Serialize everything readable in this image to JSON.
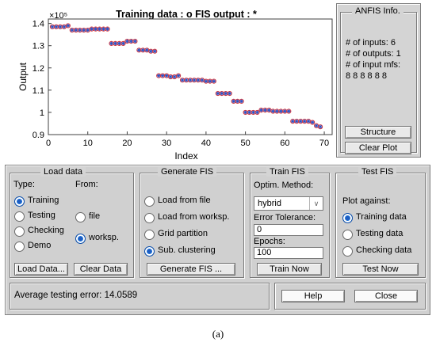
{
  "plot": {
    "title": "Training data : o    FIS output : *",
    "xlabel": "Index",
    "ylabel": "Output",
    "exponent": "×10⁵",
    "y_ticks": [
      "1.4",
      "1.3",
      "1.2",
      "1.1",
      "1",
      "0.9"
    ],
    "x_ticks": [
      "0",
      "10",
      "20",
      "30",
      "40",
      "50",
      "60",
      "70"
    ]
  },
  "chart_data": {
    "type": "scatter",
    "title": "Training data : o    FIS output : *",
    "xlabel": "Index",
    "ylabel": "Output",
    "xlim": [
      0,
      72
    ],
    "ylim": [
      0.9,
      1.42
    ],
    "y_scale_factor": "×10⁵",
    "series": [
      {
        "name": "Training data",
        "marker": "o",
        "color": "#e03030"
      },
      {
        "name": "FIS output",
        "marker": "*",
        "color": "#3050c0"
      }
    ],
    "x": [
      1,
      2,
      3,
      4,
      5,
      6,
      7,
      8,
      9,
      10,
      11,
      12,
      13,
      14,
      15,
      16,
      17,
      18,
      19,
      20,
      21,
      22,
      23,
      24,
      25,
      26,
      27,
      28,
      29,
      30,
      31,
      32,
      33,
      34,
      35,
      36,
      37,
      38,
      39,
      40,
      41,
      42,
      43,
      44,
      45,
      46,
      47,
      48,
      49,
      50,
      51,
      52,
      53,
      54,
      55,
      56,
      57,
      58,
      59,
      60,
      61,
      62,
      63,
      64,
      65,
      66,
      67,
      68,
      69
    ],
    "y": [
      1.385,
      1.385,
      1.385,
      1.385,
      1.39,
      1.37,
      1.37,
      1.37,
      1.37,
      1.37,
      1.375,
      1.375,
      1.375,
      1.375,
      1.375,
      1.31,
      1.31,
      1.31,
      1.31,
      1.32,
      1.32,
      1.32,
      1.28,
      1.28,
      1.28,
      1.275,
      1.275,
      1.165,
      1.165,
      1.165,
      1.16,
      1.16,
      1.165,
      1.145,
      1.145,
      1.145,
      1.145,
      1.145,
      1.145,
      1.14,
      1.14,
      1.14,
      1.085,
      1.085,
      1.085,
      1.085,
      1.05,
      1.05,
      1.05,
      1.0,
      1.0,
      1.0,
      1.0,
      1.01,
      1.01,
      1.01,
      1.005,
      1.005,
      1.005,
      1.005,
      1.005,
      0.96,
      0.96,
      0.96,
      0.96,
      0.96,
      0.955,
      0.94,
      0.935
    ]
  },
  "anfis_info": {
    "title": "ANFIS Info.",
    "inputs": "# of inputs: 6",
    "outputs": "# of outputs: 1",
    "mfs": "# of input mfs:",
    "mfs_values": "8  8  8  8  8  8",
    "structure_btn": "Structure",
    "clear_btn": "Clear Plot"
  },
  "load_data": {
    "title": "Load data",
    "type_label": "Type:",
    "from_label": "From:",
    "types": [
      "Training",
      "Testing",
      "Checking",
      "Demo"
    ],
    "selected_type": "Training",
    "sources": [
      "file",
      "worksp."
    ],
    "selected_source": "worksp.",
    "load_btn": "Load Data...",
    "clear_btn": "Clear Data"
  },
  "generate_fis": {
    "title": "Generate FIS",
    "options": [
      "Load from file",
      "Load from worksp.",
      "Grid partition",
      "Sub. clustering"
    ],
    "selected": "Sub. clustering",
    "generate_btn": "Generate FIS ..."
  },
  "train_fis": {
    "title": "Train FIS",
    "method_label": "Optim. Method:",
    "method_value": "hybrid",
    "tol_label": "Error Tolerance:",
    "tol_value": "0",
    "epochs_label": "Epochs:",
    "epochs_value": "100",
    "train_btn": "Train Now"
  },
  "test_fis": {
    "title": "Test FIS",
    "plot_label": "Plot against:",
    "options": [
      "Training data",
      "Testing data",
      "Checking data"
    ],
    "selected": "Training data",
    "test_btn": "Test Now"
  },
  "status": {
    "text": "Average testing error: 14.0589",
    "help_btn": "Help",
    "close_btn": "Close"
  },
  "caption": "(a)"
}
